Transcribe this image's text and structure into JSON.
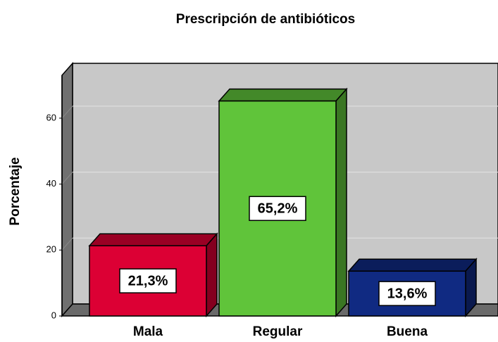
{
  "chart_data": {
    "type": "bar3d",
    "title": "Prescripción de antibióticos",
    "y_label": "Porcentaje",
    "categories": [
      "Mala",
      "Regular",
      "Buena"
    ],
    "values": [
      21.3,
      65.2,
      13.6
    ],
    "value_labels": [
      "21,3%",
      "65,2%",
      "13,6%"
    ],
    "colors": [
      "#dc0034",
      "#60c43a",
      "#102a82"
    ],
    "ylim": [
      0,
      73
    ],
    "yticks": [
      0,
      20,
      40,
      60
    ],
    "grid": true
  }
}
